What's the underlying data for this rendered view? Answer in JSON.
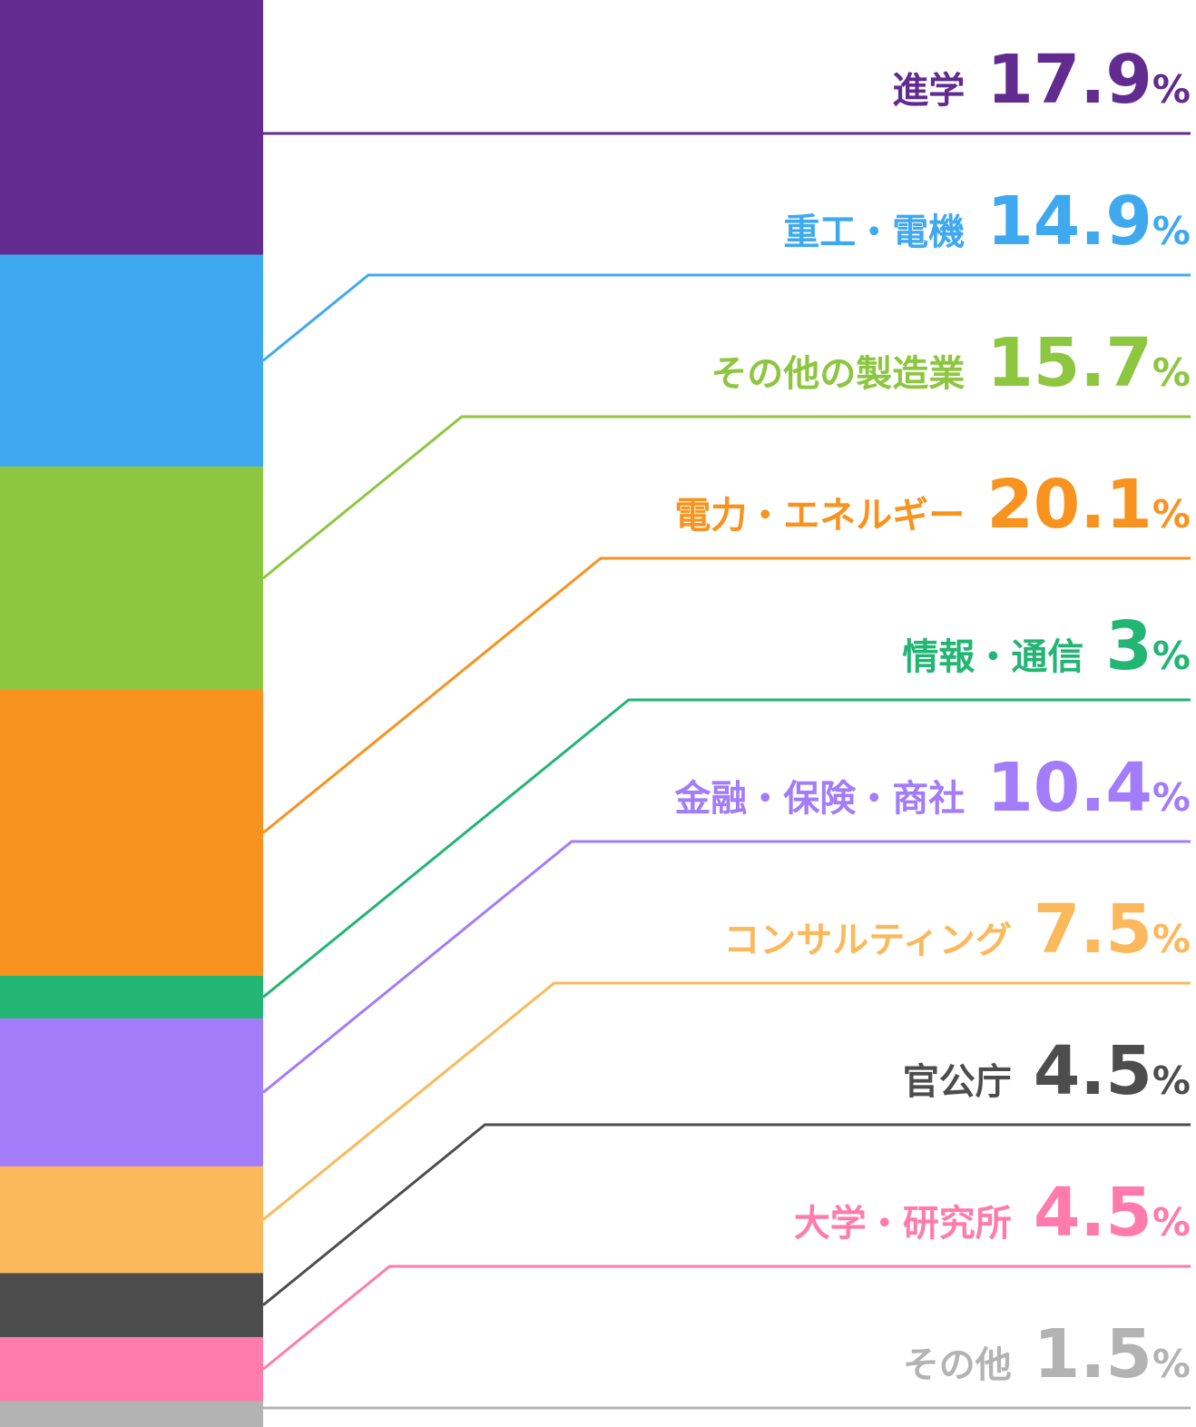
{
  "chart_data": {
    "type": "stacked-bar",
    "unit": "%",
    "categories": [
      "進学",
      "重工・電機",
      "その他の製造業",
      "電力・エネルギー",
      "情報・通信",
      "金融・保険・商社",
      "コンサルティング",
      "官公庁",
      "大学・研究所",
      "その他"
    ],
    "values": [
      17.9,
      14.9,
      15.7,
      20.1,
      3,
      10.4,
      7.5,
      4.5,
      4.5,
      1.5
    ],
    "colors": [
      "#612b8f",
      "#3fa9f0",
      "#8dc63f",
      "#f7931e",
      "#22b573",
      "#a27cf9",
      "#fbb95c",
      "#4d4d4d",
      "#ff7bac",
      "#b3b3b3"
    ],
    "ylim": [
      0,
      100
    ]
  }
}
